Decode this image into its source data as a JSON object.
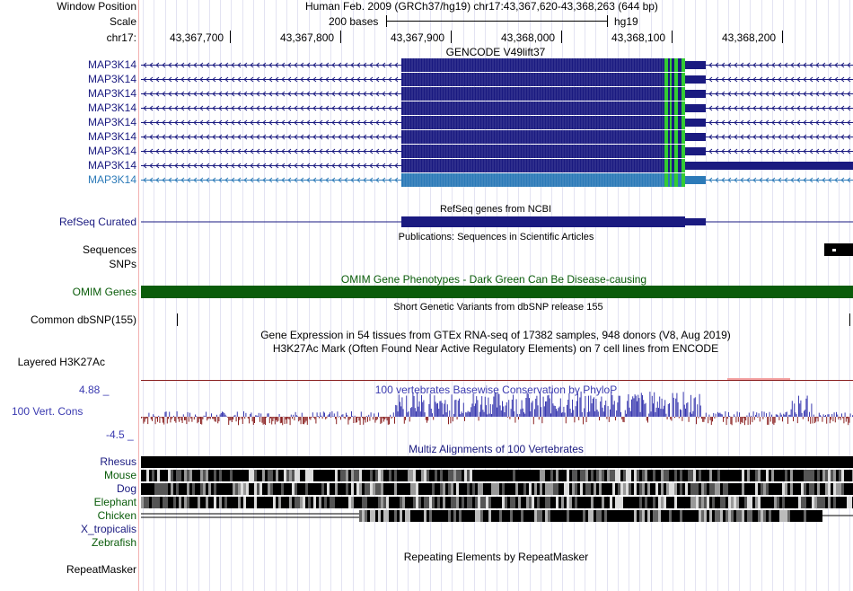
{
  "header": {
    "window_position_label": "Window Position",
    "scale_label": "Scale",
    "chrom_label": "chr17:",
    "assembly_text": "Human Feb. 2009 (GRCh37/hg19)   chr17:43,367,620-43,368,263 (644 bp)",
    "scale_text": "200 bases",
    "scale_db": "hg19",
    "positions": [
      "43,367,700",
      "43,367,800",
      "43,367,900",
      "43,368,000",
      "43,368,100",
      "43,368,200"
    ]
  },
  "gencode": {
    "title": "GENCODE V49lift37",
    "genes": [
      "MAP3K14",
      "MAP3K14",
      "MAP3K14",
      "MAP3K14",
      "MAP3K14",
      "MAP3K14",
      "MAP3K14",
      "MAP3K14",
      "MAP3K14"
    ],
    "colors": {
      "main": "#1a1a80",
      "highlight": "#2c7ab8",
      "cds_mark": "#33cc33"
    }
  },
  "refseq": {
    "label": "RefSeq Curated",
    "title": "RefSeq genes from NCBI"
  },
  "publications": {
    "title": "Publications: Sequences in Scientific Articles"
  },
  "sequences": {
    "label": "Sequences"
  },
  "snps": {
    "label": "SNPs"
  },
  "omim": {
    "label": "OMIM Genes",
    "title": "OMIM Gene Phenotypes - Dark Green Can Be Disease-causing",
    "color": "#0a5c0a"
  },
  "dbsnp": {
    "title": "Short Genetic Variants from dbSNP release 155",
    "label": "Common dbSNP(155)"
  },
  "gtex": {
    "title": "Gene Expression in 54 tissues from GTEx RNA-seq of 17382 samples, 948 donors (V8, Aug 2019)"
  },
  "h3k27ac": {
    "title": "H3K27Ac Mark (Often Found Near Active Regulatory Elements) on 7 cell lines from ENCODE",
    "label": "Layered H3K27Ac"
  },
  "conservation": {
    "title": "100 vertebrates Basewise Conservation by PhyloP",
    "label": "100 Vert. Cons",
    "max_label": "4.88 _",
    "min_label": "-4.5 _",
    "pos_color": "#3a3ab0",
    "neg_color": "#8a2020"
  },
  "multiz": {
    "title": "Multiz Alignments of 100 Vertebrates",
    "species": [
      {
        "name": "Rhesus",
        "color": "#1a1a80"
      },
      {
        "name": "Mouse",
        "color": "#0a5c0a"
      },
      {
        "name": "Dog",
        "color": "#1a1a80"
      },
      {
        "name": "Elephant",
        "color": "#0a5c0a"
      },
      {
        "name": "Chicken",
        "color": "#0a5c0a"
      },
      {
        "name": "X_tropicalis",
        "color": "#1a1a80"
      },
      {
        "name": "Zebrafish",
        "color": "#0a5c0a"
      }
    ]
  },
  "repeatmasker": {
    "title": "Repeating Elements by RepeatMasker",
    "label": "RepeatMasker"
  }
}
